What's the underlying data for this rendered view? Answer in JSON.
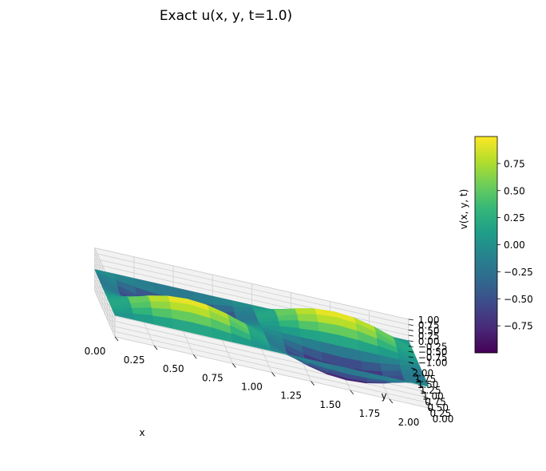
{
  "chart_data": {
    "type": "surface3d",
    "title": "Exact u(x, y, t=1.0)",
    "xlabel": "x",
    "ylabel": "y",
    "zlabel": "v(x, y, t)",
    "xlim": [
      0,
      2
    ],
    "ylim": [
      0,
      2
    ],
    "zlim": [
      -1,
      1
    ],
    "x_ticks": [
      "0.00",
      "0.25",
      "0.50",
      "0.75",
      "1.00",
      "1.25",
      "1.50",
      "1.75",
      "2.00"
    ],
    "y_ticks": [
      "0.00",
      "0.25",
      "0.50",
      "0.75",
      "1.00",
      "1.25",
      "1.50",
      "1.75",
      "2.00"
    ],
    "z_ticks": [
      "−1.00",
      "−0.75",
      "−0.50",
      "−0.25",
      "0.00",
      "0.25",
      "0.50",
      "0.75",
      "1.00"
    ],
    "function": "z = sin(pi*x) * sin(pi*y)",
    "surface_rows": [
      [
        0.0,
        0.0,
        0.0,
        0.0,
        0.0,
        0.0,
        0.0,
        0.0,
        0.0,
        0.0,
        0.0,
        0.0,
        0.0,
        0.0,
        0.0,
        0.0,
        0.0
      ],
      [
        0.0,
        0.146,
        0.271,
        0.354,
        0.383,
        0.354,
        0.271,
        0.146,
        0.0,
        -0.146,
        -0.271,
        -0.354,
        -0.383,
        -0.354,
        -0.271,
        -0.146,
        0.0
      ],
      [
        0.0,
        0.271,
        0.5,
        0.653,
        0.707,
        0.653,
        0.5,
        0.271,
        0.0,
        -0.271,
        -0.5,
        -0.653,
        -0.707,
        -0.653,
        -0.5,
        -0.271,
        0.0
      ],
      [
        0.0,
        0.354,
        0.653,
        0.854,
        0.924,
        0.854,
        0.653,
        0.354,
        0.0,
        -0.354,
        -0.653,
        -0.854,
        -0.924,
        -0.854,
        -0.653,
        -0.354,
        0.0
      ],
      [
        0.0,
        0.383,
        0.707,
        0.924,
        1.0,
        0.924,
        0.707,
        0.383,
        0.0,
        -0.383,
        -0.707,
        -0.924,
        -1.0,
        -0.924,
        -0.707,
        -0.383,
        0.0
      ],
      [
        0.0,
        0.354,
        0.653,
        0.854,
        0.924,
        0.854,
        0.653,
        0.354,
        0.0,
        -0.354,
        -0.653,
        -0.854,
        -0.924,
        -0.854,
        -0.653,
        -0.354,
        0.0
      ],
      [
        0.0,
        0.271,
        0.5,
        0.653,
        0.707,
        0.653,
        0.5,
        0.271,
        0.0,
        -0.271,
        -0.5,
        -0.653,
        -0.707,
        -0.653,
        -0.5,
        -0.271,
        0.0
      ],
      [
        0.0,
        0.146,
        0.271,
        0.354,
        0.383,
        0.354,
        0.271,
        0.146,
        0.0,
        -0.146,
        -0.271,
        -0.354,
        -0.383,
        -0.354,
        -0.271,
        -0.146,
        0.0
      ],
      [
        0.0,
        0.0,
        0.0,
        0.0,
        0.0,
        0.0,
        0.0,
        0.0,
        0.0,
        0.0,
        0.0,
        0.0,
        0.0,
        0.0,
        0.0,
        0.0,
        0.0
      ],
      [
        0.0,
        -0.146,
        -0.271,
        -0.354,
        -0.383,
        -0.354,
        -0.271,
        -0.146,
        0.0,
        0.146,
        0.271,
        0.354,
        0.383,
        0.354,
        0.271,
        0.146,
        0.0
      ],
      [
        0.0,
        -0.271,
        -0.5,
        -0.653,
        -0.707,
        -0.653,
        -0.5,
        -0.271,
        0.0,
        0.271,
        0.5,
        0.653,
        0.707,
        0.653,
        0.5,
        0.271,
        0.0
      ],
      [
        0.0,
        -0.354,
        -0.653,
        -0.854,
        -0.924,
        -0.854,
        -0.653,
        -0.354,
        0.0,
        0.354,
        0.653,
        0.854,
        0.924,
        0.854,
        0.653,
        0.354,
        0.0
      ],
      [
        0.0,
        -0.383,
        -0.707,
        -0.924,
        -1.0,
        -0.924,
        -0.707,
        -0.383,
        0.0,
        0.383,
        0.707,
        0.924,
        1.0,
        0.924,
        0.707,
        0.383,
        0.0
      ],
      [
        0.0,
        -0.354,
        -0.653,
        -0.854,
        -0.924,
        -0.854,
        -0.653,
        -0.354,
        0.0,
        0.354,
        0.653,
        0.854,
        0.924,
        0.854,
        0.653,
        0.354,
        0.0
      ],
      [
        0.0,
        -0.271,
        -0.5,
        -0.653,
        -0.707,
        -0.653,
        -0.5,
        -0.271,
        0.0,
        0.271,
        0.5,
        0.653,
        0.707,
        0.653,
        0.5,
        0.271,
        0.0
      ],
      [
        0.0,
        -0.146,
        -0.271,
        -0.354,
        -0.383,
        -0.354,
        -0.271,
        -0.146,
        0.0,
        0.146,
        0.271,
        0.354,
        0.383,
        0.354,
        0.271,
        0.146,
        0.0
      ],
      [
        0.0,
        0.0,
        0.0,
        0.0,
        0.0,
        0.0,
        0.0,
        0.0,
        0.0,
        0.0,
        0.0,
        0.0,
        0.0,
        0.0,
        0.0,
        0.0,
        0.0
      ]
    ],
    "colormap": "viridis",
    "colormap_stops": [
      "#440154",
      "#482878",
      "#3e4989",
      "#31688e",
      "#26828e",
      "#1f9e89",
      "#35b779",
      "#6ece58",
      "#b5de2b",
      "#fde725"
    ],
    "colorbar": {
      "range": [
        -1,
        1
      ],
      "ticks": [
        "0.75",
        "0.50",
        "0.25",
        "0.00",
        "−0.25",
        "−0.50",
        "−0.75"
      ]
    },
    "pane_color": "#f2f2f2",
    "grid": true
  }
}
